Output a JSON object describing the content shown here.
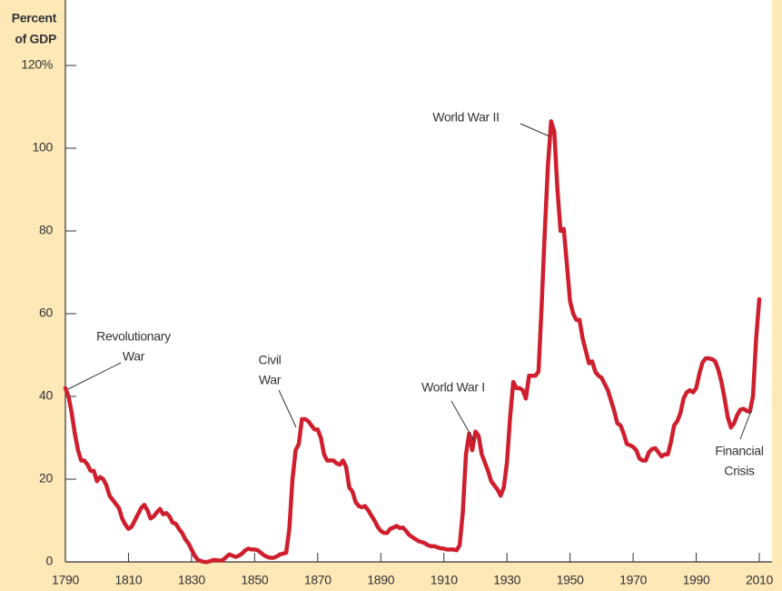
{
  "chart_data": {
    "type": "line",
    "ylabel": [
      "Percent",
      "of GDP"
    ],
    "x": [
      1790,
      1791,
      1792,
      1793,
      1794,
      1795,
      1796,
      1797,
      1798,
      1799,
      1800,
      1801,
      1802,
      1803,
      1804,
      1805,
      1806,
      1807,
      1808,
      1809,
      1810,
      1811,
      1812,
      1813,
      1814,
      1815,
      1816,
      1817,
      1818,
      1819,
      1820,
      1821,
      1822,
      1823,
      1824,
      1825,
      1826,
      1827,
      1828,
      1829,
      1830,
      1831,
      1832,
      1833,
      1834,
      1835,
      1836,
      1837,
      1838,
      1839,
      1840,
      1841,
      1842,
      1843,
      1844,
      1845,
      1846,
      1847,
      1848,
      1849,
      1850,
      1851,
      1852,
      1853,
      1854,
      1855,
      1856,
      1857,
      1858,
      1859,
      1860,
      1861,
      1862,
      1863,
      1864,
      1865,
      1866,
      1867,
      1868,
      1869,
      1870,
      1871,
      1872,
      1873,
      1874,
      1875,
      1876,
      1877,
      1878,
      1879,
      1880,
      1881,
      1882,
      1883,
      1884,
      1885,
      1886,
      1887,
      1888,
      1889,
      1890,
      1891,
      1892,
      1893,
      1894,
      1895,
      1896,
      1897,
      1898,
      1899,
      1900,
      1901,
      1902,
      1903,
      1904,
      1905,
      1906,
      1907,
      1908,
      1909,
      1910,
      1911,
      1912,
      1913,
      1914,
      1915,
      1916,
      1917,
      1918,
      1919,
      1920,
      1921,
      1922,
      1923,
      1924,
      1925,
      1926,
      1927,
      1928,
      1929,
      1930,
      1931,
      1932,
      1933,
      1934,
      1935,
      1936,
      1937,
      1938,
      1939,
      1940,
      1941,
      1942,
      1943,
      1944,
      1945,
      1946,
      1947,
      1948,
      1949,
      1950,
      1951,
      1952,
      1953,
      1954,
      1955,
      1956,
      1957,
      1958,
      1959,
      1960,
      1961,
      1962,
      1963,
      1964,
      1965,
      1966,
      1967,
      1968,
      1969,
      1970,
      1971,
      1972,
      1973,
      1974,
      1975,
      1976,
      1977,
      1978,
      1979,
      1980,
      1981,
      1982,
      1983,
      1984,
      1985,
      1986,
      1987,
      1988,
      1989,
      1990,
      1991,
      1992,
      1993,
      1994,
      1995,
      1996,
      1997,
      1998,
      1999,
      2000,
      2001,
      2002,
      2003,
      2004,
      2005,
      2006,
      2007,
      2008,
      2009,
      2010
    ],
    "series": [
      {
        "color": "#cf1f2e",
        "values": [
          42,
          40,
          36,
          31,
          27,
          24.5,
          24.5,
          23.5,
          22,
          22,
          19.5,
          20.5,
          20,
          18.5,
          16,
          15,
          14,
          13,
          10.5,
          9,
          8,
          8.5,
          10,
          11.5,
          13,
          13.8,
          12.5,
          10.5,
          11,
          12,
          12.8,
          11.5,
          11.8,
          11,
          9.5,
          9.2,
          8,
          7,
          5.5,
          4.5,
          3,
          1.5,
          0.5,
          0.2,
          0,
          0,
          0.2,
          0.5,
          0.4,
          0.3,
          0.5,
          1.2,
          1.8,
          1.5,
          1.2,
          1.5,
          2,
          2.8,
          3.2,
          3,
          3,
          2.8,
          2.2,
          1.6,
          1.2,
          1,
          1,
          1.3,
          1.8,
          2,
          2.2,
          8,
          20,
          27,
          28.5,
          34.5,
          34.5,
          34,
          33,
          32,
          32,
          30,
          26,
          24.5,
          24.5,
          24.5,
          23.8,
          23.5,
          24.5,
          23,
          18,
          17,
          14.5,
          13.5,
          13.2,
          13.5,
          12.5,
          11.2,
          10,
          8.5,
          7.5,
          7,
          7,
          8,
          8.3,
          8.7,
          8.2,
          8.3,
          7.5,
          6.5,
          6,
          5.5,
          5,
          4.8,
          4.5,
          4,
          3.8,
          3.8,
          3.5,
          3.3,
          3.2,
          3,
          3,
          3,
          2.8,
          4,
          12,
          26,
          31,
          27,
          31.5,
          30.5,
          26,
          24,
          22,
          19.5,
          18.5,
          17.5,
          16,
          18,
          24,
          35,
          43.5,
          42,
          42,
          41.5,
          39.5,
          45,
          45,
          45,
          46,
          62,
          80,
          96,
          106.5,
          104,
          90,
          80,
          80.5,
          72,
          63,
          60,
          58.5,
          58.5,
          54,
          51,
          48,
          48.5,
          46,
          45,
          44.5,
          43,
          41.5,
          39,
          36.5,
          33.5,
          33,
          31,
          28.5,
          28.2,
          27.8,
          27,
          25,
          24.5,
          24.5,
          26.5,
          27.3,
          27.5,
          26.5,
          25.5,
          26,
          26,
          29,
          33,
          34,
          36,
          39.5,
          41,
          41.5,
          41,
          42,
          45.5,
          48.2,
          49.2,
          49.2,
          49,
          48.5,
          46.5,
          43.5,
          39.5,
          35,
          32.5,
          33.5,
          35.5,
          36.8,
          37,
          36.5,
          36.3,
          40,
          54,
          63.5
        ]
      }
    ],
    "xlim": [
      1790,
      2010
    ],
    "xticks": [
      1790,
      1810,
      1830,
      1850,
      1870,
      1890,
      1910,
      1930,
      1950,
      1970,
      1990,
      2010
    ],
    "ylim": [
      0,
      120
    ],
    "yticks": [
      0,
      20,
      40,
      60,
      80,
      100,
      {
        "value": 120,
        "label": "120%"
      }
    ],
    "annotations": [
      {
        "text": [
          "Revolutionary",
          "War"
        ]
      },
      {
        "text": [
          "Civil",
          "War"
        ]
      },
      {
        "text": [
          "World War I"
        ]
      },
      {
        "text": [
          "World War II"
        ]
      },
      {
        "text": [
          "Financial",
          "Crisis"
        ]
      }
    ]
  }
}
